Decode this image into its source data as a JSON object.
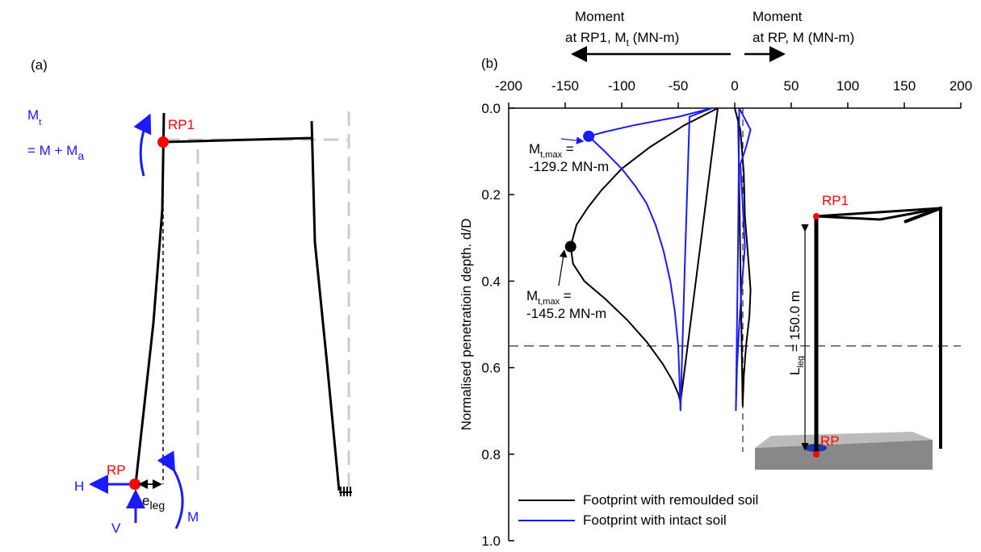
{
  "panel_a": {
    "label": "(a)",
    "moment_symbol": "M",
    "moment_sub": "t",
    "equation": "= M + M",
    "equation_sub": "a",
    "rp1": "RP1",
    "rp": "RP",
    "h": "H",
    "v": "V",
    "e": "e",
    "e_sub": "leg",
    "m": "M"
  },
  "chart_data": {
    "type": "line",
    "panel_label": "(b)",
    "x_title_left": {
      "line1": "Moment",
      "line2": "at RP1, M",
      "sub": "t",
      "tail": " (MN-m)"
    },
    "x_title_right": {
      "line1": "Moment",
      "line2": "at RP, M (MN-m)"
    },
    "y_title": "Normalised penetratioin depth. d/D",
    "xlim": [
      -200,
      200
    ],
    "xticks": [
      -200,
      -150,
      -100,
      -50,
      0,
      50,
      100,
      150,
      200
    ],
    "ylim": [
      0,
      1
    ],
    "y_inverted": true,
    "yticks": [
      {
        "value": 0,
        "label": "0.0"
      },
      0.2,
      0.4,
      0.6,
      0.8,
      {
        "value": 1,
        "label": "1.0"
      }
    ],
    "hline": 0.55,
    "legend": "lower left",
    "series": [
      {
        "name": "Footprint with remoulded soil",
        "color": "#000000",
        "x": [
          -15,
          -45,
          -75,
          -100,
          -118,
          -130,
          -140,
          -145.2,
          -143,
          -133,
          -115,
          -95,
          -78,
          -64,
          -55,
          -50,
          -48,
          -15
        ],
        "y": [
          0,
          0.04,
          0.09,
          0.14,
          0.19,
          0.23,
          0.27,
          0.32,
          0.36,
          0.4,
          0.44,
          0.49,
          0.54,
          0.59,
          0.63,
          0.66,
          0.68,
          0
        ]
      },
      {
        "color": "#000000",
        "x": [
          0,
          5,
          8,
          9,
          12,
          14,
          13,
          10,
          8,
          7,
          3
        ],
        "y": [
          0,
          0.05,
          0.15,
          0.25,
          0.35,
          0.42,
          0.48,
          0.55,
          0.62,
          0.69,
          0.02
        ]
      },
      {
        "name": "Footprint with intact soil",
        "color": "#1a1aff",
        "x": [
          -48,
          -44,
          -40,
          -20,
          -50,
          -90,
          -115,
          -129.2,
          -115,
          -100,
          -88,
          -78,
          -70,
          -63,
          -57,
          -53,
          -50,
          -49,
          -48
        ],
        "y": [
          0.7,
          0.35,
          0.02,
          0,
          0.02,
          0.04,
          0.055,
          0.065,
          0.1,
          0.14,
          0.18,
          0.22,
          0.27,
          0.33,
          0.4,
          0.47,
          0.55,
          0.62,
          0.7
        ]
      },
      {
        "color": "#1a1aff",
        "x": [
          1,
          3,
          4,
          8,
          14,
          10,
          5,
          7,
          9,
          6,
          4,
          2,
          1
        ],
        "y": [
          0.7,
          0.3,
          0,
          0.02,
          0.05,
          0.09,
          0.13,
          0.22,
          0.32,
          0.42,
          0.5,
          0.6,
          0.7
        ]
      }
    ],
    "points": [
      {
        "x": -129.2,
        "y": 0.065,
        "color": "#1a1aff",
        "label": {
          "main": "M",
          "sub": "t,max",
          "tail": " =",
          "value": "-129.2 MN-m"
        }
      },
      {
        "x": -145.2,
        "y": 0.32,
        "color": "#000000",
        "label": {
          "main": "M",
          "sub": "t,max",
          "tail": " =",
          "value": "-145.2 MN-m"
        }
      }
    ],
    "inset": {
      "rp1": "RP1",
      "rp": "RP",
      "length_symbol": "L",
      "length_sub": "leg",
      "length_text": " = 150.0 m"
    }
  }
}
